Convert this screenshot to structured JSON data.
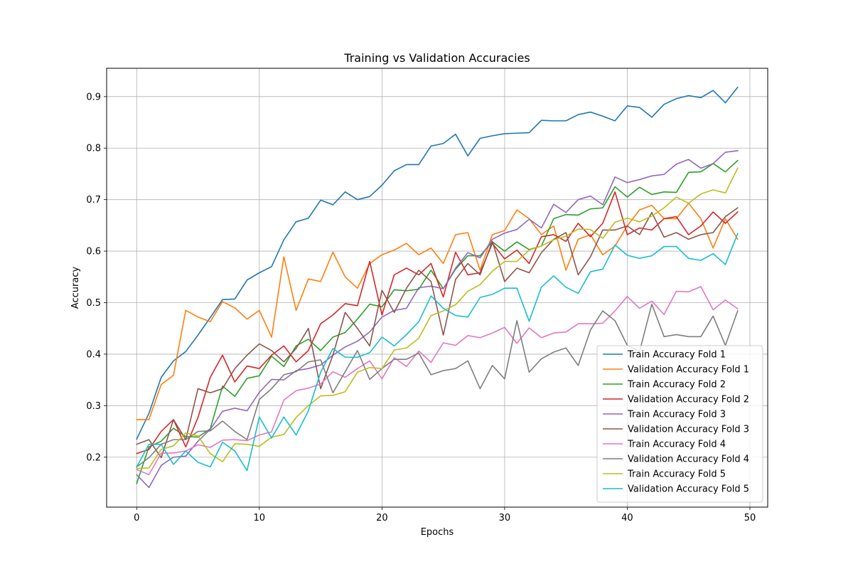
{
  "chart_data": {
    "type": "line",
    "title": "Training vs Validation Accuracies",
    "xlabel": "Epochs",
    "ylabel": "Accuracy",
    "xlim": [
      -2.45,
      51.45
    ],
    "ylim": [
      0.103,
      0.955
    ],
    "xticks": [
      0,
      10,
      20,
      30,
      40,
      50
    ],
    "yticks": [
      0.2,
      0.3,
      0.4,
      0.5,
      0.6,
      0.7,
      0.8,
      0.9
    ],
    "grid": true,
    "legend_position": "lower right",
    "x": [
      0,
      1,
      2,
      3,
      4,
      5,
      6,
      7,
      8,
      9,
      10,
      11,
      12,
      13,
      14,
      15,
      16,
      17,
      18,
      19,
      20,
      21,
      22,
      23,
      24,
      25,
      26,
      27,
      28,
      29,
      30,
      31,
      32,
      33,
      34,
      35,
      36,
      37,
      38,
      39,
      40,
      41,
      42,
      43,
      44,
      45,
      46,
      47,
      48,
      49
    ],
    "series": [
      {
        "name": "Train Accuracy Fold 1",
        "color": "#1f77b4",
        "values": [
          0.235,
          0.285,
          0.355,
          0.387,
          0.405,
          0.437,
          0.471,
          0.506,
          0.507,
          0.544,
          0.558,
          0.57,
          0.622,
          0.657,
          0.664,
          0.699,
          0.69,
          0.715,
          0.7,
          0.706,
          0.728,
          0.756,
          0.768,
          0.768,
          0.804,
          0.809,
          0.827,
          0.785,
          0.819,
          0.824,
          0.828,
          0.829,
          0.83,
          0.854,
          0.853,
          0.853,
          0.865,
          0.87,
          0.862,
          0.853,
          0.882,
          0.879,
          0.86,
          0.885,
          0.896,
          0.902,
          0.898,
          0.912,
          0.888,
          0.918
        ]
      },
      {
        "name": "Validation Accuracy Fold 1",
        "color": "#ff7f0e",
        "values": [
          0.273,
          0.273,
          0.341,
          0.359,
          0.485,
          0.472,
          0.463,
          0.502,
          0.49,
          0.468,
          0.485,
          0.433,
          0.589,
          0.485,
          0.546,
          0.541,
          0.598,
          0.55,
          0.528,
          0.576,
          0.593,
          0.602,
          0.615,
          0.593,
          0.606,
          0.576,
          0.632,
          0.636,
          0.563,
          0.632,
          0.64,
          0.68,
          0.663,
          0.632,
          0.649,
          0.563,
          0.623,
          0.632,
          0.593,
          0.61,
          0.649,
          0.68,
          0.689,
          0.663,
          0.663,
          0.693,
          0.663,
          0.606,
          0.663,
          0.623
        ]
      },
      {
        "name": "Train Accuracy Fold 2",
        "color": "#2ca02c",
        "values": [
          0.149,
          0.22,
          0.231,
          0.256,
          0.24,
          0.239,
          0.255,
          0.338,
          0.318,
          0.353,
          0.358,
          0.396,
          0.376,
          0.416,
          0.429,
          0.407,
          0.433,
          0.442,
          0.468,
          0.497,
          0.492,
          0.525,
          0.523,
          0.526,
          0.563,
          0.527,
          0.565,
          0.591,
          0.591,
          0.618,
          0.6,
          0.618,
          0.603,
          0.61,
          0.663,
          0.671,
          0.67,
          0.682,
          0.684,
          0.725,
          0.705,
          0.724,
          0.71,
          0.715,
          0.714,
          0.753,
          0.754,
          0.77,
          0.754,
          0.776
        ]
      },
      {
        "name": "Validation Accuracy Fold 2",
        "color": "#d62728",
        "values": [
          0.207,
          0.215,
          0.25,
          0.273,
          0.22,
          0.277,
          0.355,
          0.398,
          0.346,
          0.377,
          0.372,
          0.398,
          0.416,
          0.385,
          0.407,
          0.459,
          0.476,
          0.498,
          0.494,
          0.58,
          0.476,
          0.554,
          0.567,
          0.554,
          0.576,
          0.511,
          0.598,
          0.554,
          0.558,
          0.615,
          0.585,
          0.602,
          0.576,
          0.628,
          0.632,
          0.619,
          0.654,
          0.628,
          0.654,
          0.715,
          0.632,
          0.645,
          0.641,
          0.663,
          0.667,
          0.632,
          0.649,
          0.676,
          0.654,
          0.676
        ]
      },
      {
        "name": "Train Accuracy Fold 3",
        "color": "#9467bd",
        "values": [
          0.166,
          0.141,
          0.184,
          0.2,
          0.202,
          0.231,
          0.254,
          0.289,
          0.295,
          0.29,
          0.326,
          0.351,
          0.35,
          0.368,
          0.372,
          0.379,
          0.398,
          0.414,
          0.425,
          0.443,
          0.472,
          0.485,
          0.489,
          0.529,
          0.532,
          0.527,
          0.567,
          0.597,
          0.587,
          0.623,
          0.635,
          0.642,
          0.662,
          0.645,
          0.691,
          0.675,
          0.7,
          0.707,
          0.69,
          0.744,
          0.733,
          0.739,
          0.746,
          0.749,
          0.769,
          0.778,
          0.761,
          0.77,
          0.792,
          0.795
        ]
      },
      {
        "name": "Validation Accuracy Fold 3",
        "color": "#8c564b",
        "values": [
          0.225,
          0.234,
          0.199,
          0.273,
          0.234,
          0.333,
          0.325,
          0.333,
          0.372,
          0.398,
          0.42,
          0.407,
          0.385,
          0.411,
          0.45,
          0.333,
          0.398,
          0.481,
          0.45,
          0.416,
          0.524,
          0.481,
          0.528,
          0.563,
          0.541,
          0.437,
          0.545,
          0.576,
          0.554,
          0.619,
          0.541,
          0.567,
          0.558,
          0.597,
          0.623,
          0.636,
          0.554,
          0.589,
          0.641,
          0.641,
          0.649,
          0.632,
          0.675,
          0.627,
          0.636,
          0.623,
          0.632,
          0.636,
          0.667,
          0.684
        ]
      },
      {
        "name": "Train Accuracy Fold 4",
        "color": "#e377c2",
        "values": [
          0.176,
          0.166,
          0.208,
          0.208,
          0.212,
          0.224,
          0.219,
          0.233,
          0.234,
          0.232,
          0.243,
          0.249,
          0.311,
          0.329,
          0.334,
          0.342,
          0.366,
          0.355,
          0.372,
          0.387,
          0.352,
          0.393,
          0.376,
          0.406,
          0.384,
          0.422,
          0.417,
          0.436,
          0.432,
          0.441,
          0.452,
          0.421,
          0.451,
          0.432,
          0.441,
          0.443,
          0.459,
          0.459,
          0.46,
          0.484,
          0.512,
          0.489,
          0.503,
          0.477,
          0.522,
          0.521,
          0.531,
          0.486,
          0.505,
          0.488
        ]
      },
      {
        "name": "Validation Accuracy Fold 4",
        "color": "#7f7f7f",
        "values": [
          0.181,
          0.199,
          0.225,
          0.234,
          0.234,
          0.25,
          0.251,
          0.27,
          0.25,
          0.234,
          0.312,
          0.333,
          0.36,
          0.366,
          0.385,
          0.389,
          0.325,
          0.366,
          0.407,
          0.351,
          0.372,
          0.39,
          0.39,
          0.402,
          0.36,
          0.368,
          0.372,
          0.387,
          0.333,
          0.378,
          0.352,
          0.465,
          0.365,
          0.391,
          0.404,
          0.412,
          0.378,
          0.447,
          0.484,
          0.465,
          0.417,
          0.405,
          0.497,
          0.434,
          0.438,
          0.434,
          0.434,
          0.474,
          0.417,
          0.484
        ]
      },
      {
        "name": "Train Accuracy Fold 5",
        "color": "#bcbd22",
        "values": [
          0.178,
          0.179,
          0.215,
          0.222,
          0.247,
          0.241,
          0.207,
          0.191,
          0.226,
          0.225,
          0.221,
          0.239,
          0.244,
          0.277,
          0.3,
          0.319,
          0.32,
          0.327,
          0.365,
          0.374,
          0.372,
          0.408,
          0.412,
          0.431,
          0.475,
          0.484,
          0.496,
          0.522,
          0.535,
          0.561,
          0.58,
          0.58,
          0.602,
          0.61,
          0.622,
          0.629,
          0.643,
          0.642,
          0.625,
          0.656,
          0.664,
          0.657,
          0.668,
          0.684,
          0.705,
          0.693,
          0.711,
          0.719,
          0.713,
          0.761
        ]
      },
      {
        "name": "Validation Accuracy Fold 5",
        "color": "#17becf",
        "values": [
          0.181,
          0.225,
          0.225,
          0.186,
          0.212,
          0.19,
          0.181,
          0.229,
          0.212,
          0.174,
          0.278,
          0.237,
          0.278,
          0.243,
          0.29,
          0.365,
          0.411,
          0.394,
          0.394,
          0.403,
          0.433,
          0.416,
          0.438,
          0.463,
          0.513,
          0.489,
          0.475,
          0.472,
          0.51,
          0.516,
          0.528,
          0.528,
          0.464,
          0.53,
          0.552,
          0.53,
          0.518,
          0.56,
          0.565,
          0.612,
          0.592,
          0.586,
          0.591,
          0.609,
          0.609,
          0.586,
          0.582,
          0.595,
          0.574,
          0.634
        ]
      }
    ]
  }
}
